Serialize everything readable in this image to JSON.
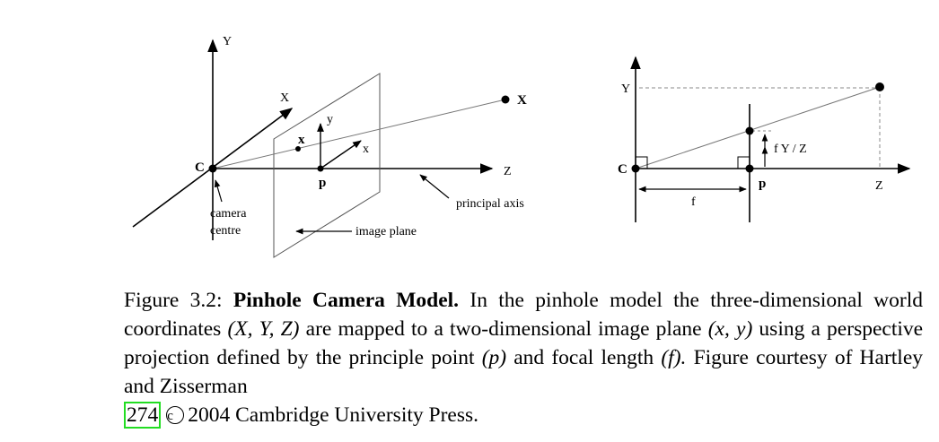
{
  "left_diagram": {
    "axis_y": "Y",
    "axis_x": "X",
    "axis_z": "Z",
    "camera_center": "C",
    "world_point": "X",
    "image_point": "x",
    "image_axis_y": "y",
    "image_axis_x": "x",
    "principal_point": "p",
    "camera_centre_label_1": "camera",
    "camera_centre_label_2": "centre",
    "image_plane_label": "image plane",
    "principal_axis_label": "principal axis"
  },
  "right_diagram": {
    "axis_y": "Y",
    "axis_z": "Z",
    "camera_center": "C",
    "principal_point": "p",
    "focal_label": "f",
    "projection_label": "f Y / Z"
  },
  "caption": {
    "figure_label": "Figure 3.2:",
    "title": "Pinhole Camera Model.",
    "text_1": "In the pinhole model the three-dimensional world coordinates",
    "coords_3d": "(X, Y, Z)",
    "text_2": "are mapped to a two-dimensional image plane",
    "coords_2d": "(x, y)",
    "text_3": "using a perspective projection defined by the principle point",
    "principal": "(p)",
    "text_4": "and focal length",
    "focal": "(f).",
    "text_5": "Figure courtesy of Hartley and Zisserman",
    "citation": "274",
    "copyright_symbol": "c",
    "text_6": "2004 Cambridge University Press."
  }
}
